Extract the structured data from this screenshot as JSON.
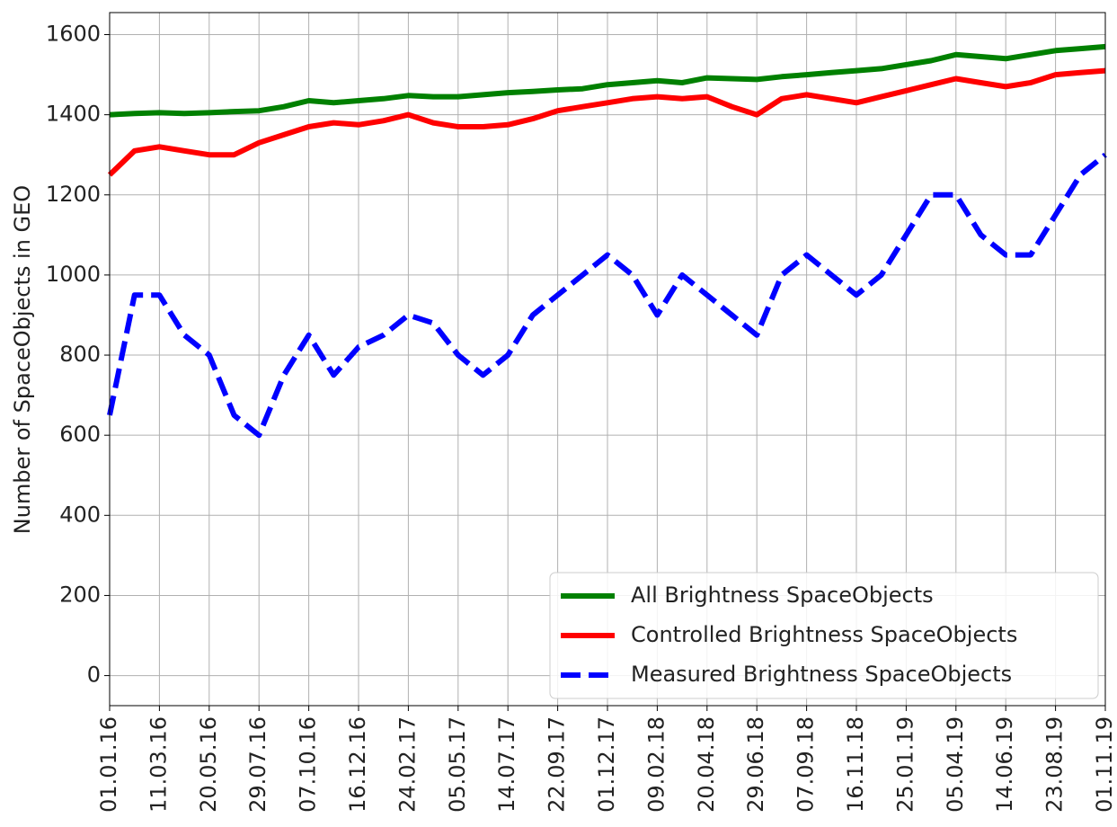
{
  "chart_data": {
    "type": "line",
    "y_label": "Number of SpaceObjects in GEO",
    "x": [
      "01.01.16",
      "05.02.16",
      "11.03.16",
      "15.04.16",
      "20.05.16",
      "24.06.16",
      "29.07.16",
      "02.09.16",
      "07.10.16",
      "11.11.16",
      "16.12.16",
      "20.01.17",
      "24.02.17",
      "31.03.17",
      "05.05.17",
      "09.06.17",
      "14.07.17",
      "18.08.17",
      "22.09.17",
      "27.10.17",
      "01.12.17",
      "05.01.18",
      "09.02.18",
      "16.03.18",
      "20.04.18",
      "25.05.18",
      "29.06.18",
      "03.08.18",
      "07.09.18",
      "12.10.18",
      "16.11.18",
      "21.12.18",
      "25.01.19",
      "01.03.19",
      "05.04.19",
      "10.05.19",
      "14.06.19",
      "19.07.19",
      "23.08.19",
      "27.09.19",
      "01.11.19"
    ],
    "xlim": [
      "01.01.16",
      "01.11.19"
    ],
    "xticks": [
      "01.01.16",
      "11.03.16",
      "20.05.16",
      "29.07.16",
      "07.10.16",
      "16.12.16",
      "24.02.17",
      "05.05.17",
      "14.07.17",
      "22.09.17",
      "01.12.17",
      "09.02.18",
      "20.04.18",
      "29.06.18",
      "07.09.18",
      "16.11.18",
      "25.01.19",
      "05.04.19",
      "14.06.19",
      "23.08.19",
      "01.11.19"
    ],
    "ylim": [
      -75,
      1655
    ],
    "yticks": [
      0,
      200,
      400,
      600,
      800,
      1000,
      1200,
      1400,
      1600
    ],
    "grid": true,
    "legend": "lower right",
    "series": [
      {
        "name": "All Brightness SpaceObjects",
        "color": "#008000",
        "style": "solid",
        "values": [
          1400,
          1403,
          1405,
          1403,
          1405,
          1408,
          1410,
          1420,
          1435,
          1430,
          1435,
          1440,
          1448,
          1445,
          1445,
          1450,
          1455,
          1458,
          1462,
          1465,
          1475,
          1480,
          1485,
          1480,
          1492,
          1490,
          1488,
          1495,
          1500,
          1505,
          1510,
          1515,
          1525,
          1535,
          1550,
          1545,
          1540,
          1550,
          1560,
          1565,
          1570
        ]
      },
      {
        "name": "Controlled Brightness SpaceObjects",
        "color": "#ff0000",
        "style": "solid",
        "values": [
          1250,
          1310,
          1320,
          1310,
          1300,
          1300,
          1330,
          1350,
          1370,
          1380,
          1375,
          1385,
          1400,
          1380,
          1370,
          1370,
          1375,
          1390,
          1410,
          1420,
          1430,
          1440,
          1445,
          1440,
          1445,
          1420,
          1400,
          1440,
          1450,
          1440,
          1430,
          1445,
          1460,
          1475,
          1490,
          1480,
          1470,
          1480,
          1500,
          1505,
          1510
        ]
      },
      {
        "name": "Measured Brightness SpaceObjects",
        "color": "#0000ff",
        "style": "dashed",
        "values": [
          650,
          950,
          950,
          850,
          800,
          650,
          600,
          750,
          850,
          750,
          820,
          850,
          900,
          880,
          800,
          750,
          800,
          900,
          950,
          1000,
          1050,
          1000,
          900,
          1000,
          950,
          900,
          850,
          1000,
          1050,
          1000,
          950,
          1000,
          1100,
          1200,
          1200,
          1100,
          1050,
          1050,
          1150,
          1250,
          1300
        ]
      }
    ]
  }
}
